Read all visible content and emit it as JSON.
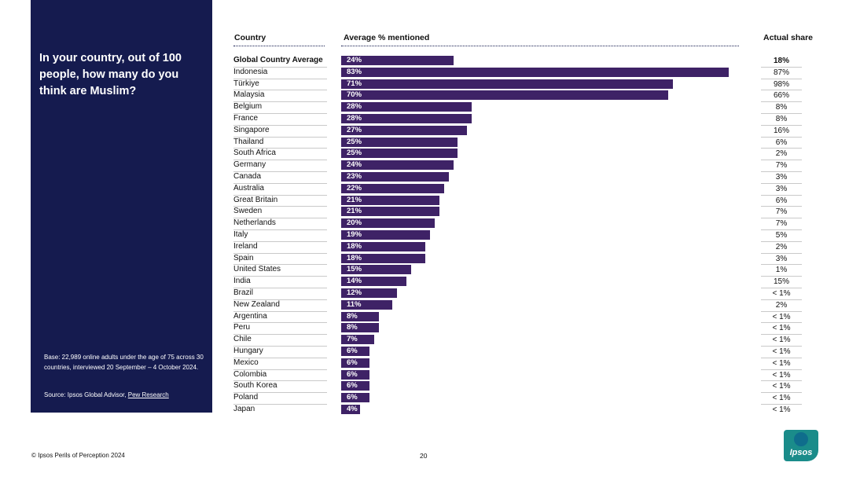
{
  "panel": {
    "question": "In your country, out of 100 people, how many do you think are Muslim?",
    "base_note": "Base: 22,989 online adults under the age of 75 across 30 countries, interviewed 20 September – 4 October 2024.",
    "source_prefix": "Source: Ipsos Global Advisor, ",
    "source_link": "Pew Research"
  },
  "headers": {
    "country": "Country",
    "average": "Average % mentioned",
    "actual": "Actual share"
  },
  "chart_data": {
    "type": "bar",
    "orientation": "horizontal",
    "categories": [
      "Global Country Average",
      "Indonesia",
      "Türkiye",
      "Malaysia",
      "Belgium",
      "France",
      "Singapore",
      "Thailand",
      "South Africa",
      "Germany",
      "Canada",
      "Australia",
      "Great Britain",
      "Sweden",
      "Netherlands",
      "Italy",
      "Ireland",
      "Spain",
      "United States",
      "India",
      "Brazil",
      "New Zealand",
      "Argentina",
      "Peru",
      "Chile",
      "Hungary",
      "Mexico",
      "Colombia",
      "South Korea",
      "Poland",
      "Japan"
    ],
    "values": [
      24,
      83,
      71,
      70,
      28,
      28,
      27,
      25,
      25,
      24,
      23,
      22,
      21,
      21,
      20,
      19,
      18,
      18,
      15,
      14,
      12,
      11,
      8,
      8,
      7,
      6,
      6,
      6,
      6,
      6,
      4
    ],
    "value_labels": [
      "24%",
      "83%",
      "71%",
      "70%",
      "28%",
      "28%",
      "27%",
      "25%",
      "25%",
      "24%",
      "23%",
      "22%",
      "21%",
      "21%",
      "20%",
      "19%",
      "18%",
      "18%",
      "15%",
      "14%",
      "12%",
      "11%",
      "8%",
      "8%",
      "7%",
      "6%",
      "6%",
      "6%",
      "6%",
      "6%",
      "4%"
    ],
    "actual_share": [
      "18%",
      "87%",
      "98%",
      "66%",
      "8%",
      "8%",
      "16%",
      "6%",
      "2%",
      "7%",
      "3%",
      "3%",
      "6%",
      "7%",
      "7%",
      "5%",
      "2%",
      "3%",
      "1%",
      "15%",
      "< 1%",
      "2%",
      "< 1%",
      "< 1%",
      "< 1%",
      "< 1%",
      "< 1%",
      "< 1%",
      "< 1%",
      "< 1%",
      "< 1%"
    ],
    "xlim": [
      0,
      100
    ],
    "bar_color": "#3e2266"
  },
  "footer": {
    "copyright": "© Ipsos Perils of Perception 2024",
    "page_number": "20"
  },
  "logo": {
    "text": "Ipsos"
  },
  "colors": {
    "panel": "#151b4f",
    "bar": "#3e2266",
    "logo": "#1a8c8a"
  }
}
